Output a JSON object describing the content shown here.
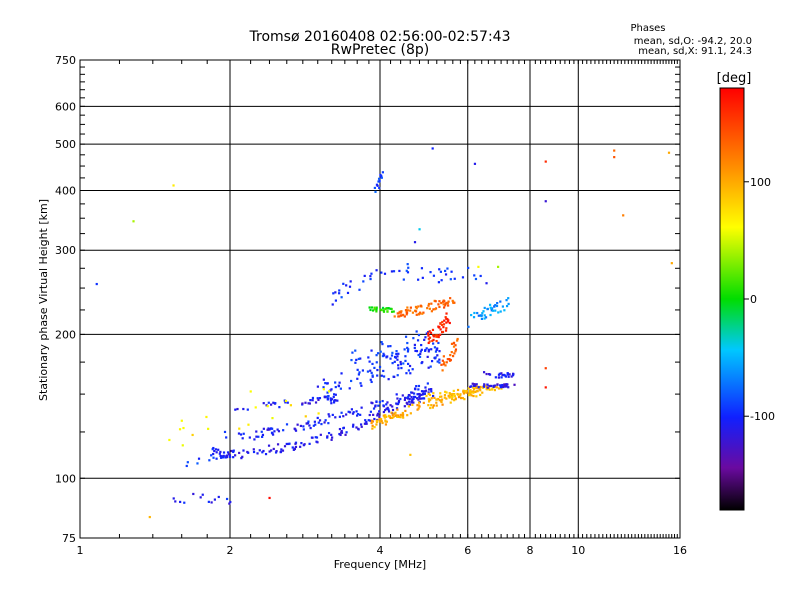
{
  "chart_data": {
    "type": "scatter",
    "title": "Tromsø 20160408 02:56:00-02:57:43",
    "subtitle": "RwPretec (8p)",
    "xlabel": "Frequency [MHz]",
    "ylabel": "Stationary phase Virtual Height [km]",
    "xscale": "log",
    "yscale": "log",
    "xlim": [
      1,
      16
    ],
    "ylim": [
      75,
      750
    ],
    "x_ticks": [
      1,
      2,
      4,
      6,
      8,
      10,
      16
    ],
    "y_ticks": [
      75,
      100,
      200,
      300,
      400,
      500,
      600,
      750
    ],
    "grid": true,
    "stats": {
      "heading": "Phases",
      "line1": "mean, sd,O: -94.2, 20.0",
      "line2": "mean, sd,X:  91.1, 24.3"
    },
    "colorbar": {
      "label": "[deg]",
      "range": [
        -180,
        180
      ],
      "ticks": [
        100,
        0,
        -100
      ],
      "colormap": "rainbow"
    },
    "traces": [
      {
        "points": [
          [
            1.86,
            113
          ],
          [
            1.95,
            112
          ],
          [
            2.1,
            112
          ],
          [
            2.3,
            114
          ],
          [
            2.55,
            116
          ],
          [
            2.8,
            118
          ],
          [
            3.05,
            121
          ],
          [
            3.3,
            124
          ],
          [
            3.55,
            128
          ],
          [
            3.8,
            133
          ],
          [
            4.05,
            137
          ],
          [
            4.3,
            141
          ],
          [
            4.55,
            144
          ],
          [
            4.8,
            148
          ],
          [
            5.1,
            152
          ]
        ],
        "phase": -110,
        "spread_h": 0.018,
        "count": 170
      },
      {
        "points": [
          [
            1.9,
            123
          ],
          [
            2.1,
            122
          ],
          [
            2.4,
            125
          ],
          [
            2.7,
            128
          ],
          [
            3.0,
            131
          ],
          [
            3.4,
            136
          ],
          [
            3.8,
            141
          ],
          [
            4.2,
            146
          ],
          [
            4.6,
            151
          ],
          [
            5.0,
            156
          ]
        ],
        "phase": -105,
        "spread_h": 0.02,
        "count": 110
      },
      {
        "points": [
          [
            2.0,
            140
          ],
          [
            2.4,
            143
          ],
          [
            2.8,
            144
          ],
          [
            3.1,
            146
          ],
          [
            3.3,
            146
          ]
        ],
        "phase": -110,
        "spread_h": 0.015,
        "count": 40
      },
      {
        "points": [
          [
            3.0,
            152
          ],
          [
            3.5,
            160
          ],
          [
            4.0,
            168
          ],
          [
            4.5,
            175
          ],
          [
            5.0,
            180
          ],
          [
            5.3,
            183
          ]
        ],
        "phase": -100,
        "spread_h": 0.05,
        "count": 90
      },
      {
        "points": [
          [
            3.5,
            170
          ],
          [
            4.0,
            178
          ],
          [
            4.5,
            186
          ],
          [
            5.0,
            192
          ]
        ],
        "phase": -95,
        "spread_h": 0.07,
        "count": 60
      },
      {
        "points": [
          [
            3.8,
            128
          ],
          [
            4.1,
            133
          ],
          [
            4.5,
            138
          ],
          [
            5.0,
            143
          ],
          [
            5.5,
            147
          ],
          [
            6.0,
            150
          ],
          [
            6.4,
            153
          ]
        ],
        "phase": 100,
        "spread_h": 0.02,
        "count": 110
      },
      {
        "points": [
          [
            4.9,
            147
          ],
          [
            5.5,
            150
          ],
          [
            6.0,
            152
          ],
          [
            6.5,
            154
          ],
          [
            7.0,
            155
          ]
        ],
        "phase": 92,
        "spread_h": 0.015,
        "count": 70
      },
      {
        "points": [
          [
            6.0,
            157
          ],
          [
            6.5,
            156
          ],
          [
            7.0,
            156
          ],
          [
            7.4,
            156
          ]
        ],
        "phase": -115,
        "spread_h": 0.008,
        "count": 40
      },
      {
        "points": [
          [
            6.4,
            165
          ],
          [
            7.0,
            164
          ],
          [
            7.4,
            165
          ]
        ],
        "phase": -110,
        "spread_h": 0.01,
        "count": 25
      },
      {
        "points": [
          [
            4.3,
            220
          ],
          [
            4.8,
            225
          ],
          [
            5.2,
            230
          ],
          [
            5.6,
            235
          ]
        ],
        "phase": 130,
        "spread_h": 0.02,
        "count": 70
      },
      {
        "points": [
          [
            5.0,
            195
          ],
          [
            5.3,
            205
          ],
          [
            5.5,
            215
          ]
        ],
        "phase": 160,
        "spread_h": 0.03,
        "count": 45
      },
      {
        "points": [
          [
            5.3,
            170
          ],
          [
            5.5,
            180
          ],
          [
            5.7,
            190
          ]
        ],
        "phase": 135,
        "spread_h": 0.03,
        "count": 25
      },
      {
        "points": [
          [
            3.8,
            225
          ],
          [
            4.1,
            225
          ],
          [
            4.3,
            224
          ]
        ],
        "phase": 5,
        "spread_h": 0.012,
        "count": 25
      },
      {
        "points": [
          [
            6.0,
            210
          ],
          [
            6.6,
            222
          ],
          [
            7.3,
            235
          ]
        ],
        "phase": -60,
        "spread_h": 0.03,
        "count": 40
      },
      {
        "points": [
          [
            3.2,
            240
          ],
          [
            3.5,
            250
          ],
          [
            4.0,
            265
          ],
          [
            4.5,
            270
          ],
          [
            5.2,
            268
          ],
          [
            6.0,
            265
          ],
          [
            7.0,
            262
          ]
        ],
        "phase": -95,
        "spread_h": 0.035,
        "count": 50
      },
      {
        "points": [
          [
            3.9,
            400
          ],
          [
            4.0,
            420
          ],
          [
            4.02,
            435
          ]
        ],
        "phase": -90,
        "spread_h": 0.01,
        "count": 14
      },
      {
        "points": [
          [
            1.45,
            88
          ],
          [
            1.7,
            92
          ],
          [
            1.95,
            90
          ],
          [
            2.05,
            88
          ]
        ],
        "phase": -105,
        "spread_h": 0.02,
        "count": 14
      },
      {
        "points": [
          [
            1.5,
            106
          ],
          [
            1.7,
            110
          ],
          [
            1.9,
            113
          ]
        ],
        "phase": -95,
        "spread_h": 0.03,
        "count": 10
      },
      {
        "points": [
          [
            1.5,
            120
          ],
          [
            2.0,
            132
          ],
          [
            2.7,
            138
          ],
          [
            3.2,
            148
          ]
        ],
        "phase": 70,
        "spread_h": 0.05,
        "count": 18
      }
    ],
    "isolated_points": [
      {
        "x": 1.08,
        "y": 255,
        "phase": -95
      },
      {
        "x": 1.28,
        "y": 345,
        "phase": 40
      },
      {
        "x": 1.54,
        "y": 410,
        "phase": 70
      },
      {
        "x": 5.1,
        "y": 490,
        "phase": -100
      },
      {
        "x": 6.2,
        "y": 455,
        "phase": -110
      },
      {
        "x": 8.6,
        "y": 460,
        "phase": 160
      },
      {
        "x": 8.6,
        "y": 380,
        "phase": -120
      },
      {
        "x": 11.8,
        "y": 485,
        "phase": 130
      },
      {
        "x": 11.8,
        "y": 470,
        "phase": 140
      },
      {
        "x": 12.3,
        "y": 355,
        "phase": 120
      },
      {
        "x": 15.2,
        "y": 480,
        "phase": 100
      },
      {
        "x": 15.4,
        "y": 282,
        "phase": 100
      },
      {
        "x": 8.6,
        "y": 170,
        "phase": 150
      },
      {
        "x": 8.6,
        "y": 155,
        "phase": 170
      },
      {
        "x": 2.4,
        "y": 91,
        "phase": 175
      },
      {
        "x": 4.8,
        "y": 332,
        "phase": -40
      },
      {
        "x": 4.7,
        "y": 312,
        "phase": -110
      },
      {
        "x": 6.3,
        "y": 277,
        "phase": 60
      },
      {
        "x": 6.9,
        "y": 277,
        "phase": 40
      },
      {
        "x": 1.38,
        "y": 83,
        "phase": 95
      },
      {
        "x": 1.6,
        "y": 132,
        "phase": 60
      },
      {
        "x": 3.9,
        "y": 128,
        "phase": 80
      },
      {
        "x": 4.6,
        "y": 112,
        "phase": 90
      },
      {
        "x": 2.2,
        "y": 152,
        "phase": 60
      }
    ]
  }
}
